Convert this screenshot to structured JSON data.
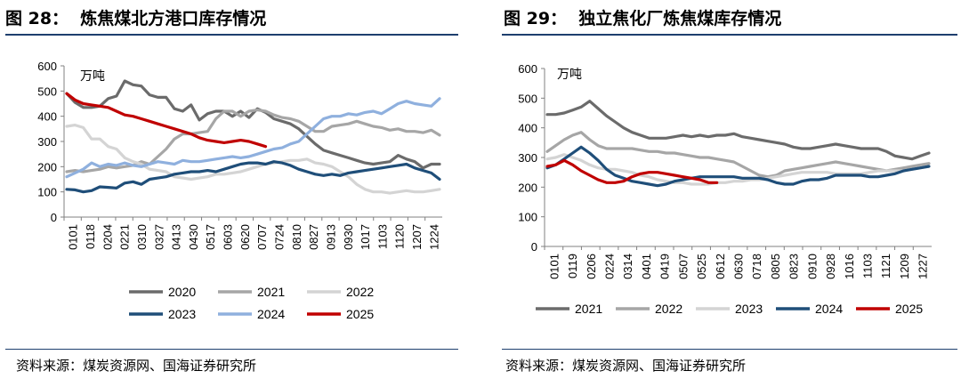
{
  "figures": [
    {
      "title": "图 28：  炼焦煤北方港口库存情况",
      "source": "资料来源：煤炭资源网、国海证券研究所"
    },
    {
      "title": "图 29：  独立焦化厂炼焦煤库存情况",
      "source": "资料来源：煤炭资源网、国海证券研究所"
    }
  ],
  "chart_data": [
    {
      "type": "line",
      "title": "炼焦煤北方港口库存情况",
      "unit": "万吨",
      "ylim": [
        0,
        600
      ],
      "yticks": [
        "0",
        "100",
        "200",
        "300",
        "400",
        "500",
        "600"
      ],
      "xticks": [
        "0101",
        "0118",
        "0204",
        "0221",
        "0310",
        "0327",
        "0413",
        "0430",
        "0517",
        "0603",
        "0620",
        "0707",
        "0724",
        "0810",
        "0827",
        "0913",
        "0930",
        "1017",
        "1103",
        "1120",
        "1207",
        "1224"
      ],
      "series": [
        {
          "name": "2020",
          "color": "#6b6b6b",
          "values": [
            490,
            455,
            435,
            435,
            440,
            470,
            480,
            540,
            525,
            520,
            485,
            475,
            475,
            430,
            420,
            445,
            385,
            410,
            420,
            420,
            400,
            420,
            395,
            430,
            415,
            390,
            380,
            370,
            350,
            320,
            290,
            265,
            255,
            245,
            235,
            225,
            215,
            210,
            215,
            220,
            245,
            230,
            220,
            195,
            210,
            210
          ]
        },
        {
          "name": "2021",
          "color": "#a6a6a6",
          "values": [
            180,
            185,
            180,
            185,
            190,
            200,
            195,
            200,
            205,
            220,
            210,
            240,
            270,
            310,
            330,
            330,
            335,
            340,
            390,
            420,
            420,
            400,
            420,
            425,
            420,
            405,
            395,
            390,
            380,
            360,
            340,
            340,
            360,
            365,
            370,
            380,
            370,
            360,
            355,
            345,
            350,
            340,
            340,
            335,
            345,
            325
          ]
        },
        {
          "name": "2022",
          "color": "#d4d4d4",
          "values": [
            360,
            365,
            355,
            310,
            310,
            280,
            270,
            235,
            220,
            210,
            190,
            185,
            180,
            160,
            155,
            150,
            155,
            160,
            170,
            170,
            175,
            180,
            190,
            200,
            210,
            215,
            220,
            225,
            225,
            230,
            215,
            210,
            200,
            180,
            160,
            130,
            110,
            100,
            100,
            95,
            100,
            105,
            100,
            100,
            105,
            110
          ]
        },
        {
          "name": "2023",
          "color": "#1f4e79",
          "values": [
            110,
            108,
            100,
            105,
            120,
            118,
            115,
            135,
            140,
            130,
            150,
            155,
            160,
            170,
            175,
            180,
            180,
            185,
            180,
            190,
            200,
            210,
            215,
            215,
            210,
            220,
            215,
            205,
            190,
            180,
            170,
            165,
            170,
            165,
            175,
            180,
            185,
            190,
            195,
            200,
            205,
            210,
            195,
            185,
            175,
            150
          ]
        },
        {
          "name": "2024",
          "color": "#8fb0de",
          "values": [
            160,
            175,
            190,
            215,
            200,
            210,
            205,
            215,
            205,
            200,
            210,
            220,
            215,
            210,
            225,
            220,
            220,
            225,
            230,
            235,
            240,
            235,
            240,
            250,
            260,
            270,
            275,
            290,
            300,
            330,
            360,
            390,
            400,
            400,
            410,
            405,
            415,
            420,
            410,
            430,
            450,
            460,
            450,
            445,
            440,
            470
          ]
        },
        {
          "name": "2025",
          "color": "#c00000",
          "values": [
            490,
            465,
            450,
            445,
            440,
            435,
            420,
            405,
            400,
            390,
            380,
            370,
            360,
            350,
            340,
            330,
            315,
            305,
            300,
            295,
            300,
            305,
            300,
            290,
            280
          ]
        }
      ]
    },
    {
      "type": "line",
      "title": "独立焦化厂炼焦煤库存情况",
      "unit": "万吨",
      "ylim": [
        0,
        600
      ],
      "yticks": [
        "0",
        "100",
        "200",
        "300",
        "400",
        "500",
        "600"
      ],
      "xticks": [
        "0101",
        "0119",
        "0206",
        "0224",
        "0314",
        "0401",
        "0419",
        "0507",
        "0525",
        "0612",
        "0630",
        "0718",
        "0805",
        "0823",
        "0910",
        "0928",
        "1016",
        "1103",
        "1121",
        "1209",
        "1227"
      ],
      "series": [
        {
          "name": "2021",
          "color": "#6b6b6b",
          "values": [
            445,
            445,
            450,
            460,
            470,
            490,
            465,
            440,
            420,
            400,
            385,
            375,
            365,
            365,
            365,
            370,
            375,
            370,
            375,
            370,
            375,
            375,
            380,
            370,
            365,
            360,
            355,
            350,
            345,
            335,
            330,
            330,
            335,
            340,
            345,
            340,
            335,
            330,
            330,
            330,
            320,
            305,
            300,
            295,
            305,
            315
          ]
        },
        {
          "name": "2022",
          "color": "#a6a6a6",
          "values": [
            320,
            340,
            360,
            375,
            385,
            360,
            340,
            330,
            330,
            330,
            330,
            325,
            320,
            320,
            315,
            315,
            310,
            305,
            300,
            300,
            295,
            290,
            285,
            270,
            255,
            240,
            235,
            240,
            255,
            260,
            265,
            270,
            275,
            280,
            285,
            280,
            275,
            270,
            265,
            260,
            255,
            260,
            265,
            270,
            275,
            280
          ]
        },
        {
          "name": "2023",
          "color": "#d4d4d4",
          "values": [
            295,
            300,
            310,
            300,
            290,
            275,
            265,
            260,
            260,
            255,
            250,
            240,
            235,
            225,
            220,
            215,
            215,
            210,
            210,
            210,
            215,
            215,
            220,
            220,
            225,
            225,
            230,
            235,
            240,
            245,
            250,
            250,
            250,
            250,
            245,
            245,
            245,
            245,
            250,
            255,
            255,
            255,
            255,
            260,
            265,
            270
          ]
        },
        {
          "name": "2024",
          "color": "#1f4e79",
          "values": [
            265,
            275,
            295,
            315,
            335,
            315,
            290,
            260,
            240,
            230,
            220,
            215,
            210,
            205,
            210,
            220,
            225,
            230,
            235,
            235,
            235,
            235,
            235,
            230,
            230,
            230,
            225,
            215,
            210,
            210,
            220,
            225,
            225,
            230,
            240,
            240,
            240,
            240,
            235,
            235,
            240,
            245,
            255,
            260,
            265,
            270
          ]
        },
        {
          "name": "2025",
          "color": "#c00000",
          "values": [
            270,
            275,
            290,
            275,
            255,
            240,
            225,
            215,
            215,
            220,
            235,
            245,
            250,
            250,
            245,
            240,
            235,
            230,
            225,
            215,
            215
          ]
        }
      ]
    }
  ]
}
